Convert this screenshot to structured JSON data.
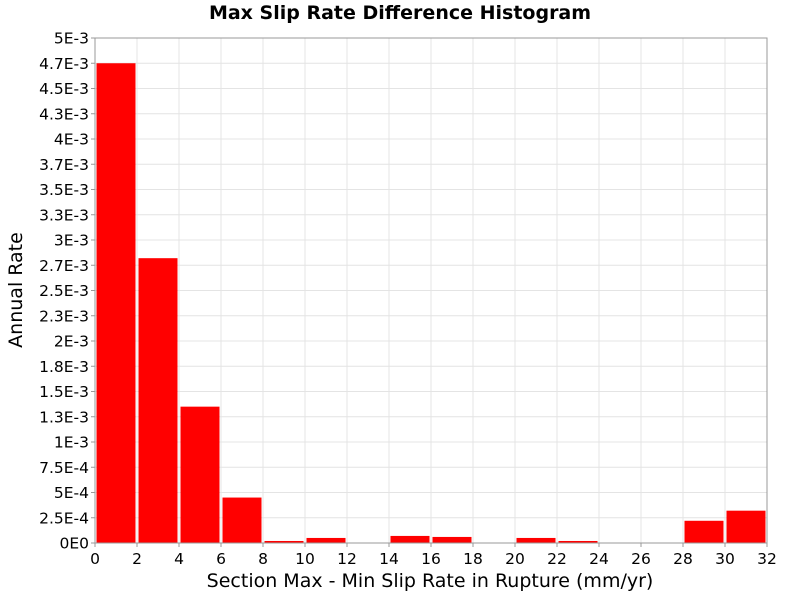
{
  "chart_data": {
    "type": "bar",
    "title": "Max Slip Rate Difference Histogram",
    "xlabel": "Section Max - Min Slip Rate in Rupture (mm/yr)",
    "ylabel": "Annual Rate",
    "xlim": [
      0,
      32
    ],
    "ylim": [
      0,
      0.005
    ],
    "bin_width": 2,
    "bin_centers": [
      1,
      3,
      5,
      7,
      9,
      11,
      13,
      15,
      17,
      19,
      21,
      23,
      25,
      27,
      29,
      31
    ],
    "values": [
      0.00475,
      0.00282,
      0.00135,
      0.00045,
      2e-05,
      5e-05,
      0,
      7e-05,
      6e-05,
      0,
      5e-05,
      2e-05,
      0,
      0,
      0.00022,
      0.00032
    ],
    "bar_color": "#ff0000",
    "x_ticks": [
      "0",
      "2",
      "4",
      "6",
      "8",
      "10",
      "12",
      "14",
      "16",
      "18",
      "20",
      "22",
      "24",
      "26",
      "28",
      "30",
      "32"
    ],
    "y_ticks": [
      {
        "value": 0,
        "label": "0E0"
      },
      {
        "value": 0.00025,
        "label": "2.5E-4"
      },
      {
        "value": 0.0005,
        "label": "5E-4"
      },
      {
        "value": 0.00075,
        "label": "7.5E-4"
      },
      {
        "value": 0.001,
        "label": "1E-3"
      },
      {
        "value": 0.00125,
        "label": "1.3E-3"
      },
      {
        "value": 0.0015,
        "label": "1.5E-3"
      },
      {
        "value": 0.00175,
        "label": "1.8E-3"
      },
      {
        "value": 0.002,
        "label": "2E-3"
      },
      {
        "value": 0.00225,
        "label": "2.3E-3"
      },
      {
        "value": 0.0025,
        "label": "2.5E-3"
      },
      {
        "value": 0.00275,
        "label": "2.7E-3"
      },
      {
        "value": 0.003,
        "label": "3E-3"
      },
      {
        "value": 0.00325,
        "label": "3.3E-3"
      },
      {
        "value": 0.0035,
        "label": "3.5E-3"
      },
      {
        "value": 0.00375,
        "label": "3.7E-3"
      },
      {
        "value": 0.004,
        "label": "4E-3"
      },
      {
        "value": 0.00425,
        "label": "4.3E-3"
      },
      {
        "value": 0.0045,
        "label": "4.5E-3"
      },
      {
        "value": 0.00475,
        "label": "4.7E-3"
      },
      {
        "value": 0.005,
        "label": "5E-3"
      }
    ],
    "grid": true,
    "legend": "none"
  }
}
